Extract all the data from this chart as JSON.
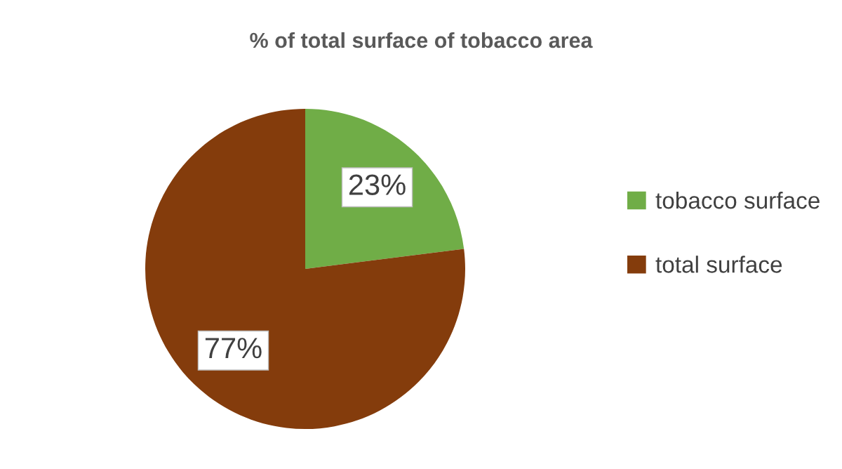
{
  "chart_data": {
    "type": "pie",
    "title": "% of total surface of tobacco area",
    "categories": [
      "tobacco surface",
      "total surface"
    ],
    "values": [
      23,
      77
    ],
    "colors": [
      "#70ad47",
      "#843c0c"
    ],
    "value_labels": [
      "23%",
      "77%"
    ],
    "legend": "right"
  }
}
